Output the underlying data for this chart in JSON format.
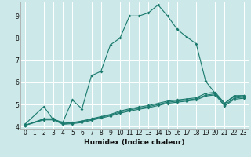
{
  "xlabel": "Humidex (Indice chaleur)",
  "bg_color": "#cce8e8",
  "grid_color": "#ffffff",
  "line_color": "#1a7a6e",
  "xlim": [
    -0.5,
    23.5
  ],
  "ylim": [
    3.9,
    9.65
  ],
  "xticks": [
    0,
    1,
    2,
    3,
    4,
    5,
    6,
    7,
    8,
    9,
    10,
    11,
    12,
    13,
    14,
    15,
    16,
    17,
    18,
    19,
    20,
    21,
    22,
    23
  ],
  "yticks": [
    4,
    5,
    6,
    7,
    8,
    9
  ],
  "curves": [
    {
      "x": [
        0,
        2,
        3,
        4,
        5,
        6,
        7,
        8,
        9,
        10,
        11,
        12,
        13,
        14,
        15,
        16,
        17,
        18,
        19,
        20,
        21,
        22,
        23
      ],
      "y": [
        4.1,
        4.9,
        4.3,
        4.2,
        5.2,
        4.8,
        6.3,
        6.5,
        7.7,
        8.0,
        9.0,
        9.0,
        9.15,
        9.5,
        9.0,
        8.4,
        8.05,
        7.75,
        6.05,
        5.5,
        5.05,
        5.4,
        5.4
      ]
    },
    {
      "x": [
        0,
        2,
        3,
        4,
        5,
        6,
        7,
        8,
        9,
        10,
        11,
        12,
        13,
        14,
        15,
        16,
        17,
        18,
        19,
        20,
        21,
        22,
        23
      ],
      "y": [
        4.05,
        4.35,
        4.35,
        4.15,
        4.18,
        4.25,
        4.35,
        4.45,
        4.55,
        4.7,
        4.8,
        4.88,
        4.95,
        5.05,
        5.15,
        5.2,
        5.25,
        5.3,
        5.5,
        5.55,
        5.05,
        5.35,
        5.4
      ]
    },
    {
      "x": [
        0,
        2,
        3,
        4,
        5,
        6,
        7,
        8,
        9,
        10,
        11,
        12,
        13,
        14,
        15,
        16,
        17,
        18,
        19,
        20,
        21,
        22,
        23
      ],
      "y": [
        4.05,
        4.33,
        4.33,
        4.13,
        4.16,
        4.22,
        4.32,
        4.42,
        4.52,
        4.65,
        4.75,
        4.83,
        4.9,
        5.0,
        5.1,
        5.15,
        5.2,
        5.25,
        5.42,
        5.48,
        4.98,
        5.28,
        5.33
      ]
    },
    {
      "x": [
        0,
        2,
        3,
        4,
        5,
        6,
        7,
        8,
        9,
        10,
        11,
        12,
        13,
        14,
        15,
        16,
        17,
        18,
        19,
        20,
        21,
        22,
        23
      ],
      "y": [
        4.05,
        4.3,
        4.3,
        4.1,
        4.13,
        4.18,
        4.28,
        4.38,
        4.48,
        4.6,
        4.7,
        4.78,
        4.85,
        4.95,
        5.05,
        5.1,
        5.15,
        5.2,
        5.38,
        5.43,
        4.93,
        5.23,
        5.28
      ]
    }
  ]
}
